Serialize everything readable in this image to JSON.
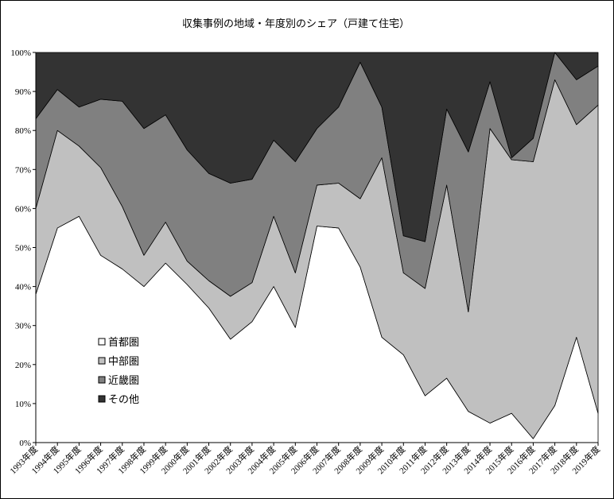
{
  "chart_data": {
    "type": "area",
    "stacked": true,
    "percent": true,
    "title": "収集事例の地域・年度別のシェア（戸建て住宅）",
    "categories": [
      "1993年度",
      "1994年度",
      "1995年度",
      "1996年度",
      "1997年度",
      "1998年度",
      "1999年度",
      "2000年度",
      "2001年度",
      "2002年度",
      "2003年度",
      "2004年度",
      "2005年度",
      "2006年度",
      "2007年度",
      "2008年度",
      "2009年度",
      "2010年度",
      "2011年度",
      "2012年度",
      "2013年度",
      "2014年度",
      "2015年度",
      "2016年度",
      "2017年度",
      "2018年度",
      "2019年度"
    ],
    "y_ticks": [
      "0%",
      "10%",
      "20%",
      "30%",
      "40%",
      "50%",
      "60%",
      "70%",
      "80%",
      "90%",
      "100%"
    ],
    "ylim": [
      0,
      100
    ],
    "legend_position": "left-center",
    "series": [
      {
        "name": "首都圏",
        "color": "#ffffff",
        "values": [
          38,
          55,
          58,
          48,
          44.5,
          40,
          46,
          40.5,
          34.5,
          26.5,
          31,
          40,
          29.5,
          55.5,
          55,
          45,
          27,
          22.5,
          12,
          16.5,
          8,
          5,
          7.5,
          1,
          9.5,
          27,
          7.5
        ]
      },
      {
        "name": "中部圏",
        "color": "#c0c0c0",
        "values": [
          22,
          25,
          18,
          22.5,
          16,
          8,
          10.5,
          6,
          7,
          11,
          10,
          18,
          14,
          10.5,
          11.5,
          17.5,
          46,
          21,
          27.5,
          49.5,
          25.5,
          75.5,
          65,
          71,
          83.5,
          54.5,
          79
        ]
      },
      {
        "name": "近畿圏",
        "color": "#808080",
        "values": [
          23,
          10.5,
          10,
          17.5,
          27,
          32.5,
          27.5,
          28.5,
          27.5,
          29,
          26.5,
          19.5,
          28.5,
          14.5,
          19.5,
          35,
          13,
          9.5,
          12,
          19.5,
          41,
          12,
          0.5,
          6,
          7,
          11.5,
          10
        ]
      },
      {
        "name": "その他",
        "color": "#333333",
        "values": [
          17,
          9.5,
          14,
          12,
          12.5,
          19.5,
          16,
          25,
          31,
          33.5,
          32.5,
          22.5,
          28,
          19.5,
          14,
          2.5,
          14,
          47,
          48.5,
          14.5,
          25.5,
          7.5,
          27,
          22,
          0,
          7,
          3.5
        ]
      }
    ]
  }
}
